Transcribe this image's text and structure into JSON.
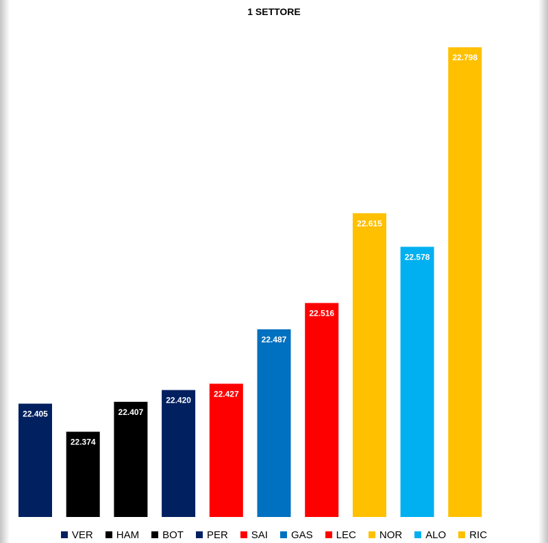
{
  "chart_data": {
    "type": "bar",
    "title": "1 SETTORE",
    "categories": [
      "VER",
      "HAM",
      "BOT",
      "PER",
      "SAI",
      "GAS",
      "LEC",
      "NOR",
      "ALO",
      "RIC"
    ],
    "values": [
      22.405,
      22.374,
      22.407,
      22.42,
      22.427,
      22.487,
      22.516,
      22.615,
      22.578,
      22.798
    ],
    "value_labels": [
      "22.405",
      "22.374",
      "22.407",
      "22.420",
      "22.427",
      "22.487",
      "22.516",
      "22.615",
      "22.578",
      "22.798"
    ],
    "colors": [
      "#002060",
      "#000000",
      "#000000",
      "#002060",
      "#ff0000",
      "#0070c0",
      "#ff0000",
      "#ffc000",
      "#00b0f0",
      "#ffc000"
    ],
    "ylim": [
      22.28,
      22.82
    ],
    "grid": false,
    "legend_position": "bottom"
  }
}
